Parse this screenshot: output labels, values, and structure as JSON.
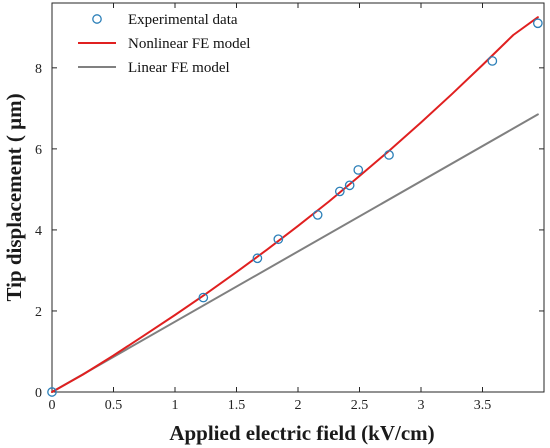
{
  "chart_data": {
    "type": "line",
    "xlabel": "Applied electric field (kV/cm)",
    "ylabel": "Tip displacement ( μm)",
    "xlim": [
      0,
      4
    ],
    "ylim": [
      0,
      9.6
    ],
    "xticks": [
      0,
      0.5,
      1,
      1.5,
      2,
      2.5,
      3,
      3.5
    ],
    "xtick_labels": [
      "0",
      "0.5",
      "1",
      "1.5",
      "2",
      "2.5",
      "3",
      "3.5"
    ],
    "yticks": [
      0,
      2,
      4,
      6,
      8
    ],
    "ytick_labels": [
      "0",
      "2",
      "4",
      "6",
      "8"
    ],
    "grid": false,
    "legend_position": "top-left",
    "series": [
      {
        "name": "Experimental data",
        "kind": "scatter",
        "marker": "circle",
        "color": "#2b7fb8",
        "x": [
          0,
          1.23,
          1.67,
          1.84,
          2.16,
          2.34,
          2.42,
          2.49,
          2.74,
          3.58,
          3.95
        ],
        "y": [
          0,
          2.33,
          3.3,
          3.77,
          4.37,
          4.95,
          5.1,
          5.48,
          5.85,
          8.17,
          9.1
        ]
      },
      {
        "name": "Nonlinear FE model",
        "kind": "line",
        "color": "#e02020",
        "x": [
          0,
          0.25,
          0.5,
          0.75,
          1,
          1.25,
          1.5,
          1.75,
          2,
          2.25,
          2.5,
          2.75,
          3,
          3.25,
          3.5,
          3.75,
          3.95
        ],
        "y": [
          0,
          0.43,
          0.9,
          1.4,
          1.9,
          2.42,
          2.96,
          3.52,
          4.1,
          4.7,
          5.33,
          5.98,
          6.65,
          7.35,
          8.07,
          8.81,
          9.25
        ]
      },
      {
        "name": "Linear FE model",
        "kind": "line",
        "color": "#808080",
        "x": [
          0,
          3.95
        ],
        "y": [
          0,
          6.85
        ]
      }
    ]
  }
}
